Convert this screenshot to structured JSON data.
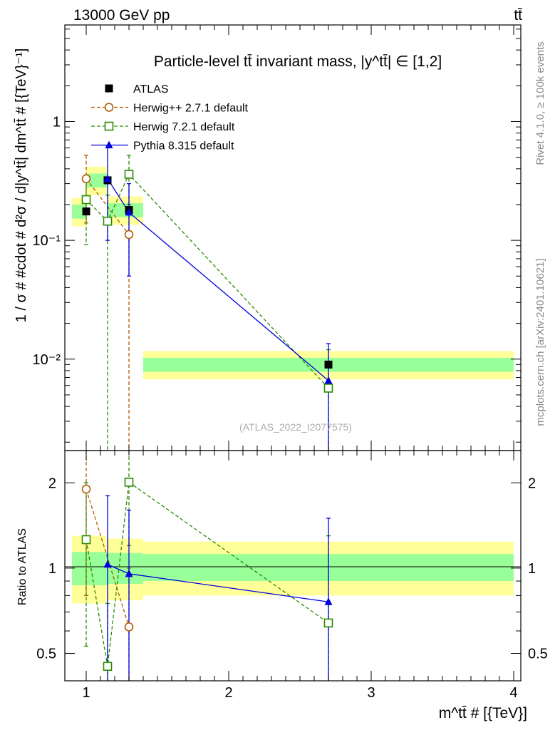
{
  "header": {
    "left": "13000 GeV pp",
    "right": "tt̄"
  },
  "side_labels": {
    "rivet": "Rivet 4.1.0, ≥ 100k events",
    "mcplots": "mcplots.cern.ch [arXiv:2401.10621]"
  },
  "watermark": "(ATLAS_2022_I2077575)",
  "chart_data": [
    {
      "type": "scatter",
      "panel": "main",
      "title": "Particle-level tt̄ invariant mass, |y^tt̄| ∈ [1,2]",
      "ylabel": "1 / σ # #cdot # d²σ / d|y^tt̄| dm^tt̄ # [{TeV}⁻¹]",
      "yscale": "log",
      "xlim": [
        0.85,
        4.05
      ],
      "ylim": [
        0.0017,
        6.5
      ],
      "ytick_labels": [
        "10⁻²",
        "10⁻¹",
        "1"
      ],
      "ytick_values": [
        0.01,
        0.1,
        1
      ],
      "legend": [
        "ATLAS",
        "Herwig++ 2.7.1 default",
        "Herwig 7.2.1 default",
        "Pythia 8.315 default"
      ],
      "series": [
        {
          "name": "ATLAS",
          "color": "#000000",
          "marker": "filled-square",
          "line": "none",
          "x": [
            1.0,
            1.15,
            1.3,
            2.7
          ],
          "y": [
            0.175,
            0.32,
            0.18,
            0.009
          ],
          "band_edges": [
            0.9,
            1.0,
            1.15,
            1.4,
            4.0
          ]
        },
        {
          "name": "Herwig++ 2.7.1 default",
          "color": "#b35900",
          "marker": "open-circle",
          "line": "dashed",
          "x": [
            1.0,
            1.3
          ],
          "y": [
            0.33,
            0.112
          ],
          "y_err_low": [
            0.14,
            0.0001
          ],
          "y_err_high": [
            0.52,
            0.2
          ]
        },
        {
          "name": "Herwig 7.2.1 default",
          "color": "#2a8a00",
          "marker": "open-square",
          "line": "dashed",
          "x": [
            1.0,
            1.15,
            1.3,
            2.7
          ],
          "y": [
            0.22,
            0.145,
            0.36,
            0.0057
          ],
          "y_err_low": [
            0.092,
            0.0001,
            0.2,
            0.0001
          ],
          "y_err_high": [
            0.35,
            0.24,
            0.52,
            0.012
          ]
        },
        {
          "name": "Pythia 8.315 default",
          "color": "#0000e0",
          "marker": "filled-triangle",
          "line": "solid",
          "x": [
            1.15,
            1.3,
            2.7
          ],
          "y": [
            0.33,
            0.172,
            0.0066
          ],
          "y_err_low": [
            0.1,
            0.05,
            0.0001
          ],
          "y_err_high": [
            0.6,
            0.3,
            0.0135
          ]
        }
      ]
    },
    {
      "type": "scatter",
      "panel": "ratio",
      "ylabel": "Ratio to ATLAS",
      "xlabel": "m^tt̄ # [{TeV}]",
      "yscale": "log",
      "xlim": [
        0.85,
        4.05
      ],
      "ylim": [
        0.4,
        2.6
      ],
      "xtick_values": [
        1,
        2,
        3,
        4
      ],
      "xtick_labels": [
        "1",
        "2",
        "3",
        "4"
      ],
      "ytick_values": [
        0.5,
        1,
        2
      ],
      "ytick_labels": [
        "0.5",
        "1",
        "2"
      ],
      "bands": {
        "edges": [
          0.9,
          1.0,
          1.15,
          1.4,
          4.0
        ],
        "green_low": [
          0.87,
          0.87,
          0.88,
          0.9
        ],
        "green_high": [
          1.14,
          1.14,
          1.13,
          1.12
        ],
        "yellow_low": [
          0.75,
          0.75,
          0.77,
          0.8
        ],
        "yellow_high": [
          1.3,
          1.3,
          1.27,
          1.24
        ]
      },
      "series": [
        {
          "name": "Herwig++ 2.7.1 default",
          "x": [
            1.0,
            1.3
          ],
          "y": [
            1.9,
            0.62
          ],
          "y_err_low": [
            0.8,
            0.3
          ],
          "y_err_high": [
            2.9,
            1.0
          ]
        },
        {
          "name": "Herwig 7.2.1 default",
          "x": [
            1.0,
            1.15,
            1.3,
            2.7
          ],
          "y": [
            1.26,
            0.45,
            2.01,
            0.64
          ],
          "y_err_low": [
            0.53,
            0.3,
            1.2,
            0.3
          ],
          "y_err_high": [
            2.0,
            0.75,
            2.9,
            1.3
          ]
        },
        {
          "name": "Pythia 8.315 default",
          "x": [
            1.15,
            1.3,
            2.7
          ],
          "y": [
            1.03,
            0.955,
            0.76
          ],
          "y_err_low": [
            0.3,
            0.3,
            0.3
          ],
          "y_err_high": [
            1.8,
            1.6,
            1.5
          ]
        }
      ]
    }
  ]
}
